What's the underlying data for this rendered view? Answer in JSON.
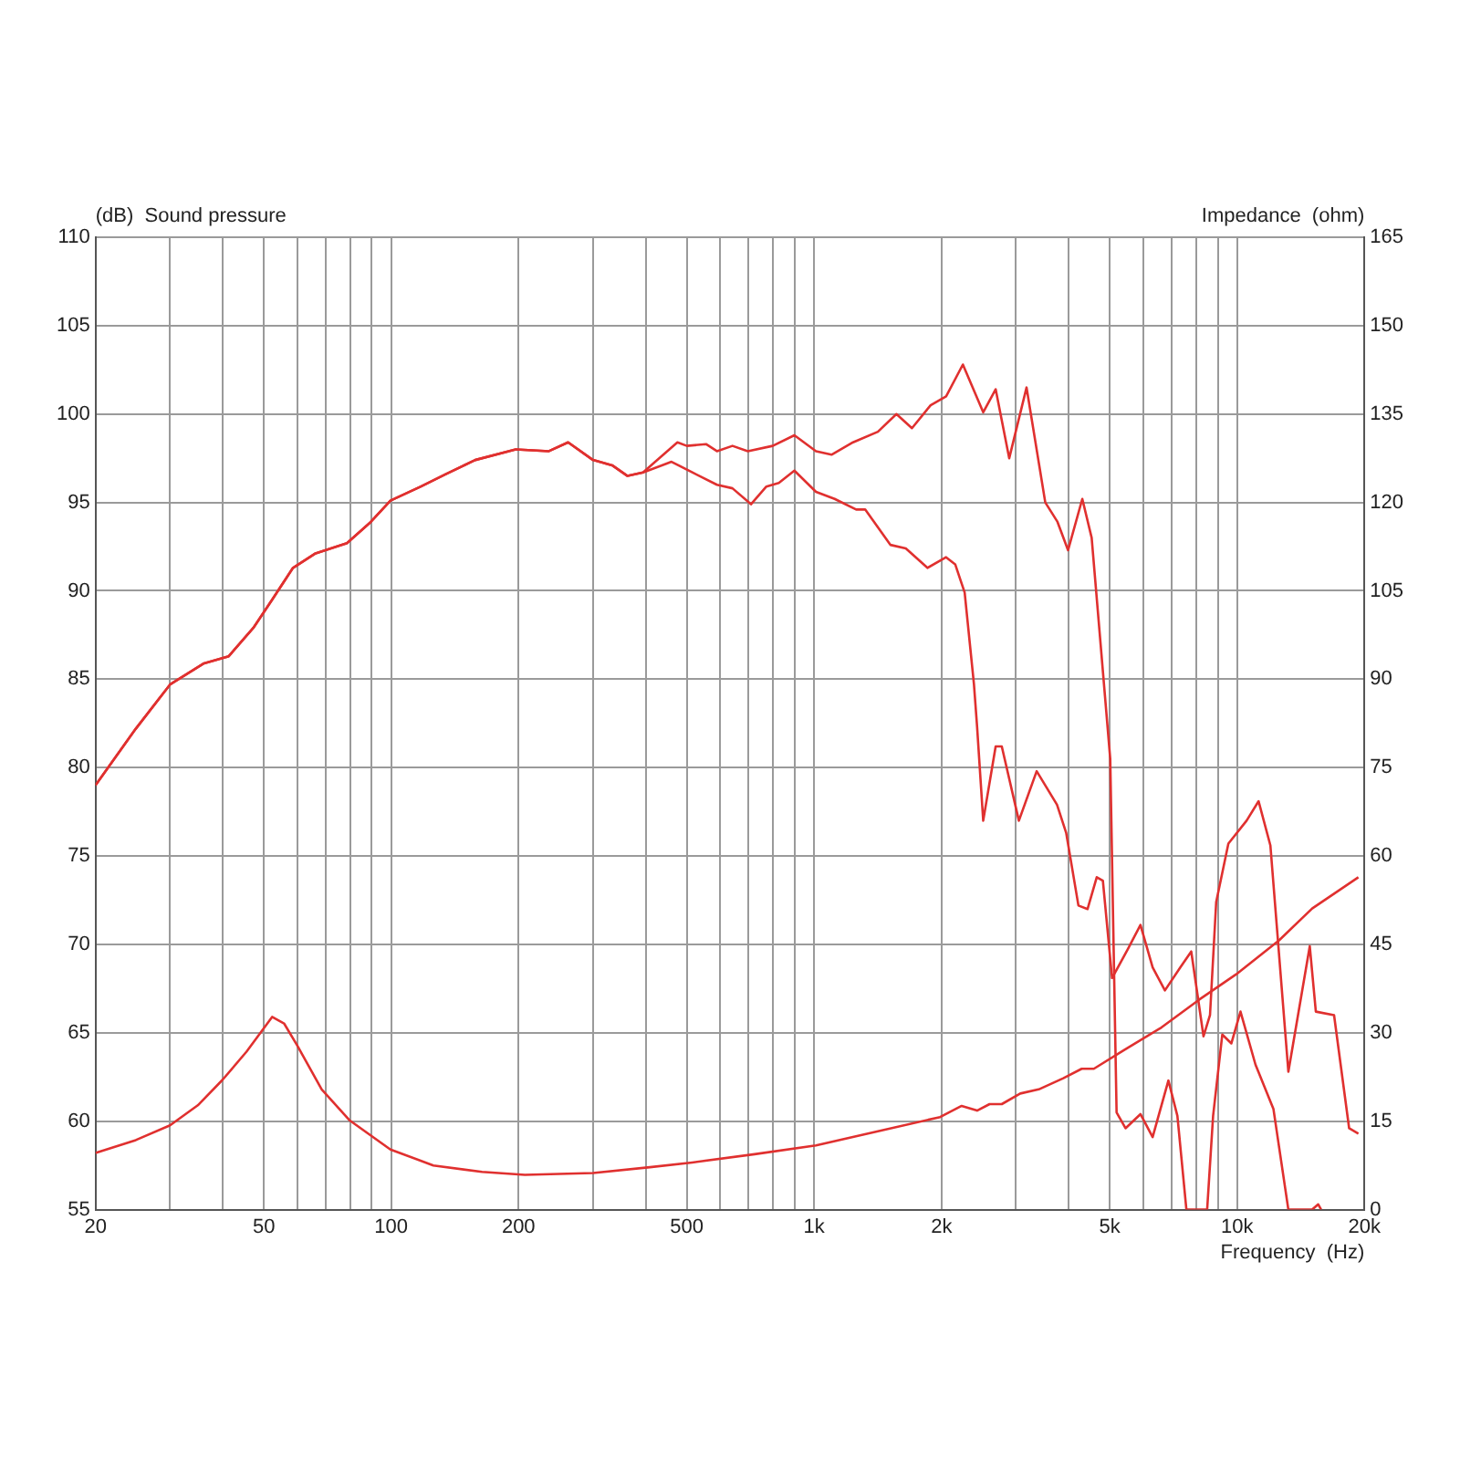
{
  "chart_data": {
    "type": "line",
    "xlabel": "Frequency  (Hz)",
    "ylabel": "(dB)  Sound pressure",
    "y2label": "Impedance  (ohm)",
    "log": "x",
    "grid": true,
    "legend": false,
    "marker": "none",
    "line_style": "solid",
    "xlim": [
      20,
      20000
    ],
    "xticks": [
      20,
      {
        "value": 30,
        "label": null
      },
      {
        "value": 40,
        "label": null
      },
      50,
      {
        "value": 60,
        "label": null
      },
      {
        "value": 70,
        "label": null
      },
      {
        "value": 80,
        "label": null
      },
      {
        "value": 90,
        "label": null
      },
      100,
      200,
      {
        "value": 300,
        "label": null
      },
      {
        "value": 400,
        "label": null
      },
      500,
      {
        "value": 600,
        "label": null
      },
      {
        "value": 700,
        "label": null
      },
      {
        "value": 800,
        "label": null
      },
      {
        "value": 900,
        "label": null
      },
      {
        "value": 1000,
        "label": "1k"
      },
      {
        "value": 2000,
        "label": "2k"
      },
      {
        "value": 3000,
        "label": null
      },
      {
        "value": 4000,
        "label": null
      },
      {
        "value": 5000,
        "label": "5k"
      },
      {
        "value": 6000,
        "label": null
      },
      {
        "value": 7000,
        "label": null
      },
      {
        "value": 8000,
        "label": null
      },
      {
        "value": 9000,
        "label": null
      },
      {
        "value": 10000,
        "label": "10k"
      },
      {
        "value": 20000,
        "label": "20k"
      }
    ],
    "ylim": [
      55,
      110
    ],
    "yticks": [
      55,
      60,
      65,
      70,
      75,
      80,
      85,
      90,
      95,
      100,
      105,
      110
    ],
    "y2lim": [
      0,
      165
    ],
    "y2ticks": [
      0,
      15,
      30,
      45,
      60,
      75,
      90,
      105,
      120,
      135,
      150,
      165
    ],
    "series": [
      {
        "color": "#e0302f",
        "x": [
          20,
          24.9,
          30,
          36.1,
          41.3,
          47.2,
          52.3,
          58.6,
          66,
          78.6,
          89.5,
          99.6,
          117.6,
          134.6,
          158,
          197,
          236,
          262,
          300,
          333,
          362,
          394,
          475,
          500,
          555,
          589,
          641,
          697,
          798,
          898,
          1010,
          1099,
          1236,
          1415,
          1565,
          1703,
          1885,
          2051,
          2247,
          2510,
          2686,
          2892,
          3178,
          3519,
          3761,
          3984,
          4305,
          4530,
          5012,
          5188,
          5447,
          5908,
          6313,
          6879,
          7224,
          7587,
          8494,
          8774,
          9224,
          9692,
          10185,
          11052,
          12184,
          13217,
          15045,
          15550,
          15800
        ],
        "values": [
          79,
          82.2,
          84.7,
          85.9,
          86.3,
          87.9,
          89.5,
          91.3,
          92.1,
          92.7,
          93.9,
          95.1,
          95.9,
          96.6,
          97.4,
          98,
          97.9,
          98.4,
          97.4,
          97.1,
          96.5,
          96.7,
          98.4,
          98.2,
          98.3,
          97.9,
          98.2,
          97.9,
          98.2,
          98.8,
          97.9,
          97.7,
          98.4,
          99,
          100,
          99.2,
          100.5,
          101,
          102.8,
          100.1,
          101.4,
          97.5,
          101.5,
          95,
          93.9,
          92.3,
          95.2,
          93,
          80.5,
          60.5,
          59.6,
          60.4,
          59.1,
          62.3,
          60.3,
          55,
          55,
          60.3,
          64.9,
          64.4,
          66.2,
          63.2,
          60.7,
          55,
          55,
          55.3,
          55
        ]
      },
      {
        "color": "#e0302f",
        "x": [
          20,
          24.9,
          30,
          36.1,
          41.3,
          47.2,
          52.3,
          58.6,
          66,
          78.6,
          89.5,
          99.6,
          117.6,
          134.6,
          158,
          197,
          236,
          262,
          300,
          333,
          362,
          394,
          460,
          515,
          589,
          641,
          709,
          771,
          825,
          898,
          1010,
          1118,
          1257,
          1320,
          1514,
          1647,
          1853,
          2051,
          2155,
          2269,
          2387,
          2428,
          2510,
          2686,
          2777,
          3048,
          3358,
          3751,
          3944,
          4215,
          4430,
          4657,
          4815,
          5062,
          5505,
          5908,
          6313,
          6750,
          7337,
          7790,
          8328,
          8627,
          8923,
          9535,
          10528,
          11240,
          11985,
          13217,
          14850,
          15350,
          16950,
          18400,
          19350
        ],
        "values": [
          79,
          82.2,
          84.7,
          85.9,
          86.3,
          87.9,
          89.5,
          91.3,
          92.1,
          92.7,
          93.9,
          95.1,
          95.9,
          96.6,
          97.4,
          98,
          97.9,
          98.4,
          97.4,
          97.1,
          96.5,
          96.7,
          97.3,
          96.7,
          96,
          95.8,
          94.9,
          95.9,
          96.1,
          96.8,
          95.6,
          95.2,
          94.6,
          94.6,
          92.6,
          92.4,
          91.3,
          91.9,
          91.5,
          89.9,
          84.7,
          82.3,
          77,
          81.2,
          81.2,
          77,
          79.8,
          77.9,
          76.3,
          72.2,
          72,
          73.8,
          73.6,
          68.1,
          69.7,
          71.1,
          68.7,
          67.4,
          68.7,
          69.6,
          64.8,
          66,
          72.4,
          75.7,
          77,
          78.1,
          75.6,
          62.8,
          69.9,
          66.2,
          66,
          59.6,
          59.3
        ]
      },
      {
        "color": "#e0302f",
        "axis": "y2",
        "x": [
          20,
          24.9,
          30,
          34.9,
          39.9,
          45.5,
          52.3,
          55.8,
          59.9,
          68.5,
          79.6,
          99.6,
          125.8,
          164,
          207,
          300,
          409,
          515,
          723,
          1010,
          1415,
          1985,
          2232,
          2428,
          2598,
          2777,
          3071,
          3396,
          3882,
          4291,
          4584,
          5410,
          6621,
          8124,
          9936,
          12567,
          15045,
          19350
        ],
        "values": [
          9.6,
          11.8,
          14.3,
          17.7,
          22,
          26.8,
          32.7,
          31.6,
          27.9,
          20.4,
          15.2,
          10.2,
          7.5,
          6.4,
          5.9,
          6.2,
          7.2,
          8,
          9.4,
          10.9,
          13.3,
          15.7,
          17.6,
          16.8,
          17.9,
          17.9,
          19.7,
          20.4,
          22.3,
          23.9,
          23.9,
          27.1,
          30.9,
          35.6,
          39.9,
          45.7,
          51.1,
          56.4
        ]
      }
    ]
  }
}
